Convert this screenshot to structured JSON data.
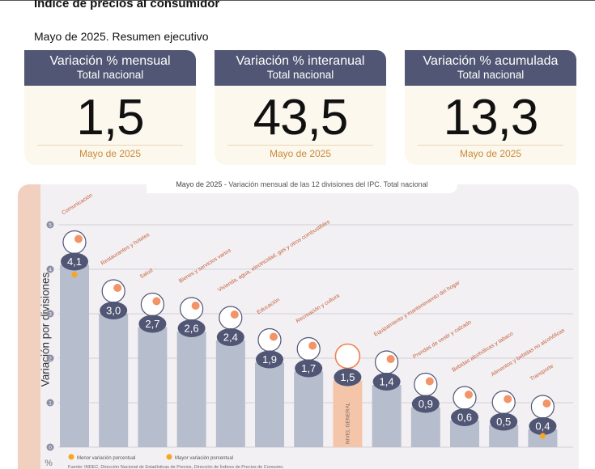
{
  "header": {
    "title": "Índice de precios al consumidor",
    "subtitle": "Mayo de 2025. Resumen ejecutivo"
  },
  "cards": [
    {
      "label": "Variación % mensual",
      "sublabel": "Total nacional",
      "value": "1,5",
      "date": "Mayo de 2025"
    },
    {
      "label": "Variación % interanual",
      "sublabel": "Total nacional",
      "value": "43,5",
      "date": "Mayo de 2025"
    },
    {
      "label": "Variación % acumulada",
      "sublabel": "Total nacional",
      "value": "13,3",
      "date": "Mayo de 2025"
    }
  ],
  "chart_panel": {
    "title_date": "Mayo de 2025",
    "title_text": " - Variación mensual de las 12 divisiones del IPC. Total nacional",
    "ylabel": "Variación por divisiones",
    "unit": "%",
    "legend_min": "Menor variación porcentual",
    "legend_max": "Mayor variación porcentual",
    "source": "Fuente: INDEC, Dirección Nacional de Estadísticas de Precios, Dirección de Índices de Precios de Consumo."
  },
  "colors": {
    "bar": "#b6bdcd",
    "bar_general": "#f4c5a8",
    "bubble": "#505674",
    "marker": "#f5a623",
    "card_head": "#505674",
    "card_body": "#fdf8ee",
    "card_date": "#c98a3a"
  },
  "chart_data": {
    "type": "bar",
    "ylim": [
      0,
      5
    ],
    "yticks": [
      0,
      1,
      2,
      3,
      4,
      5
    ],
    "grid": true,
    "categories": [
      "Comunicación",
      "Restaurantes y hoteles",
      "Salud",
      "Bienes y servicios varios",
      "Vivienda, agua, electricidad, gas y otros combustibles",
      "Educación",
      "Recreación y cultura",
      "NIVEL GENERAL",
      "Equipamiento y mantenimiento del hogar",
      "Prendas de vestir y calzado",
      "Bebidas alcohólicas y tabaco",
      "Alimentos y bebidas no alcohólicas",
      "Transporte"
    ],
    "labels": [
      "4,1",
      "3,0",
      "2,7",
      "2,6",
      "2,4",
      "1,9",
      "1,7",
      "1,5",
      "1,4",
      "0,9",
      "0,6",
      "0,5",
      "0,4"
    ],
    "values": [
      4.1,
      3.0,
      2.7,
      2.6,
      2.4,
      1.9,
      1.7,
      1.5,
      1.4,
      0.9,
      0.6,
      0.5,
      0.4
    ],
    "icons": [
      "phone-icon",
      "cutlery-icon",
      "medical-kit-icon",
      "hairdryer-icon",
      "lightbulb-icon",
      "notebook-icon",
      "beach-umbrella-icon",
      "",
      "toolbox-icon",
      "tshirt-icon",
      "bottle-icon",
      "grocery-bag-icon",
      "bus-icon"
    ],
    "markers": {
      "max_index": 0,
      "min_index": 12
    }
  }
}
